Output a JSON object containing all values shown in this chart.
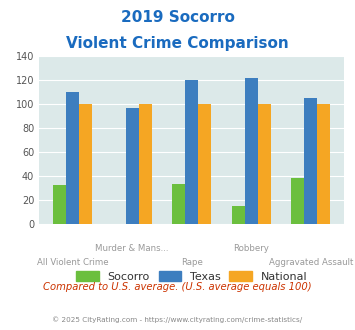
{
  "title_line1": "2019 Socorro",
  "title_line2": "Violent Crime Comparison",
  "categories": [
    "All Violent Crime",
    "Murder & Mans...",
    "Rape",
    "Robbery",
    "Aggravated Assault"
  ],
  "cat_labels_top": [
    "",
    "Murder & Mans...",
    "",
    "Robbery",
    ""
  ],
  "cat_labels_bot": [
    "All Violent Crime",
    "",
    "Rape",
    "",
    "Aggravated Assault"
  ],
  "socorro": [
    33,
    0,
    34,
    15,
    39
  ],
  "texas": [
    110,
    97,
    120,
    122,
    105
  ],
  "national": [
    100,
    100,
    100,
    100,
    100
  ],
  "socorro_color": "#6bbf3e",
  "texas_color": "#3d7ebf",
  "national_color": "#f5a623",
  "ylim": [
    0,
    140
  ],
  "yticks": [
    0,
    20,
    40,
    60,
    80,
    100,
    120,
    140
  ],
  "plot_bg": "#dce9e9",
  "fig_bg": "#ffffff",
  "title_color": "#1a6bbf",
  "xlabel_color": "#999999",
  "footer_text": "Compared to U.S. average. (U.S. average equals 100)",
  "footer_color": "#cc3300",
  "credit_text": "© 2025 CityRating.com - https://www.cityrating.com/crime-statistics/",
  "credit_color": "#888888"
}
